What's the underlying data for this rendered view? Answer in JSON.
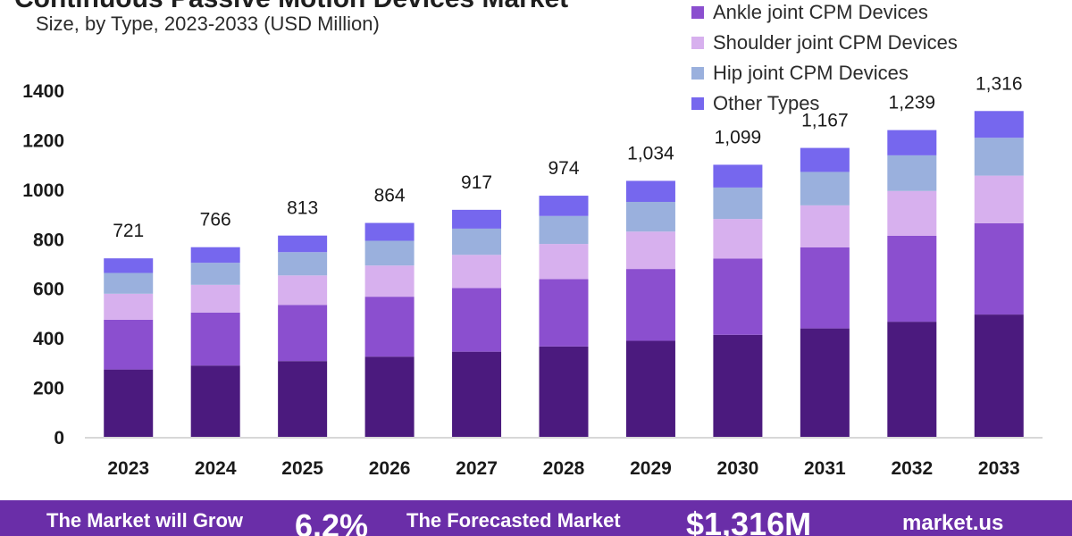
{
  "header": {
    "title": "Continuous Passive Motion Devices Market",
    "subtitle": "Size, by Type, 2023-2033 (USD Million)"
  },
  "colors": {
    "series": [
      "#4b1a7e",
      "#8b4fcf",
      "#d7b0ee",
      "#9ab0dd",
      "#7667ee"
    ],
    "axis": "#cccccc",
    "footer_bg": "#6a2ea8"
  },
  "legend": {
    "items": [
      {
        "label": "Ankle joint CPM Devices",
        "color": "#8b4fcf"
      },
      {
        "label": "Shoulder joint CPM Devices",
        "color": "#d7b0ee"
      },
      {
        "label": "Hip joint CPM Devices",
        "color": "#9ab0dd"
      },
      {
        "label": "Other Types",
        "color": "#7667ee"
      }
    ]
  },
  "chart_data": {
    "type": "bar",
    "stacked": true,
    "categories": [
      "2023",
      "2024",
      "2025",
      "2026",
      "2027",
      "2028",
      "2029",
      "2030",
      "2031",
      "2032",
      "2033"
    ],
    "totals_labels": [
      "721",
      "766",
      "813",
      "864",
      "917",
      "974",
      "1,034",
      "1,099",
      "1,167",
      "1,239",
      "1,316"
    ],
    "series": [
      {
        "values": [
          272,
          288,
          306,
          324,
          344,
          365,
          388,
          412,
          438,
          465,
          494
        ]
      },
      {
        "name": "Ankle joint CPM Devices",
        "values": [
          201,
          214,
          227,
          242,
          257,
          272,
          290,
          308,
          327,
          347,
          369
        ]
      },
      {
        "name": "Shoulder joint CPM Devices",
        "values": [
          105,
          112,
          119,
          126,
          134,
          142,
          151,
          160,
          170,
          181,
          192
        ]
      },
      {
        "name": "Hip joint CPM Devices",
        "values": [
          84,
          89,
          94,
          100,
          106,
          113,
          120,
          127,
          135,
          144,
          153
        ]
      },
      {
        "name": "Other Types",
        "values": [
          59,
          63,
          67,
          72,
          76,
          82,
          85,
          92,
          97,
          102,
          108
        ]
      }
    ],
    "y_ticks": [
      "0",
      "200",
      "400",
      "600",
      "800",
      "1000",
      "1200",
      "1400"
    ],
    "ylim": [
      0,
      1400
    ],
    "grid": false
  },
  "footer": {
    "grow_label": "The Market will Grow",
    "cagr": "6.2%",
    "forecast_label": "The Forecasted Market",
    "forecast_value": "$1,316M",
    "brand": "market.us"
  }
}
